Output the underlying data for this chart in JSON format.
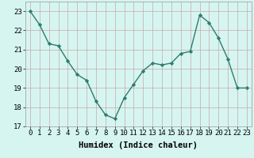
{
  "x": [
    0,
    1,
    2,
    3,
    4,
    5,
    6,
    7,
    8,
    9,
    10,
    11,
    12,
    13,
    14,
    15,
    16,
    17,
    18,
    19,
    20,
    21,
    22,
    23
  ],
  "y": [
    23.0,
    22.3,
    21.3,
    21.2,
    20.4,
    19.7,
    19.4,
    18.3,
    17.6,
    17.4,
    18.5,
    19.2,
    19.9,
    20.3,
    20.2,
    20.3,
    20.8,
    20.9,
    22.8,
    22.4,
    21.6,
    20.5,
    19.0,
    19.0
  ],
  "line_color": "#2e7d6e",
  "marker": "D",
  "marker_size": 2.2,
  "bg_color": "#d6f5f0",
  "grid_color": "#c8a8a8",
  "xlabel": "Humidex (Indice chaleur)",
  "ylim": [
    17,
    23.5
  ],
  "xlim": [
    -0.5,
    23.5
  ],
  "yticks": [
    17,
    18,
    19,
    20,
    21,
    22,
    23
  ],
  "xticks": [
    0,
    1,
    2,
    3,
    4,
    5,
    6,
    7,
    8,
    9,
    10,
    11,
    12,
    13,
    14,
    15,
    16,
    17,
    18,
    19,
    20,
    21,
    22,
    23
  ],
  "linewidth": 1.0,
  "tick_fontsize": 6.5,
  "xlabel_fontsize": 7.5
}
